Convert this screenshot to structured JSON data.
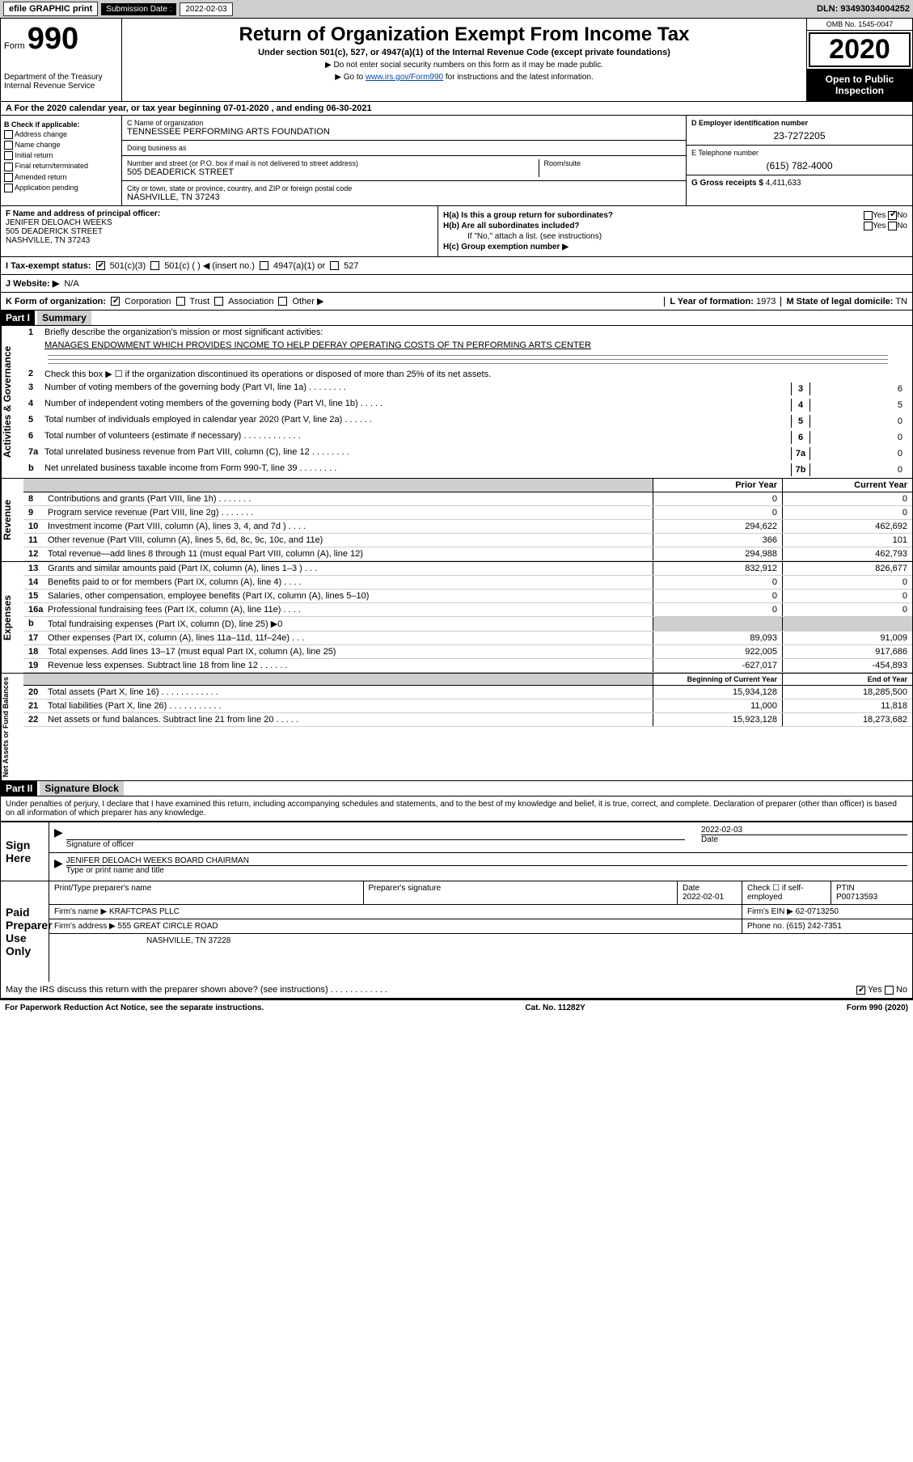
{
  "topbar": {
    "efile": "efile GRAPHIC print",
    "sub_label": "Submission Date :",
    "sub_date": "2022-02-03",
    "dln": "DLN: 93493034004252"
  },
  "header": {
    "form_word": "Form",
    "form_num": "990",
    "dept": "Department of the Treasury\nInternal Revenue Service",
    "title": "Return of Organization Exempt From Income Tax",
    "sub": "Under section 501(c), 527, or 4947(a)(1) of the Internal Revenue Code (except private foundations)",
    "note1": "▶ Do not enter social security numbers on this form as it may be made public.",
    "note2_pre": "▶ Go to ",
    "note2_link": "www.irs.gov/Form990",
    "note2_post": " for instructions and the latest information.",
    "omb": "OMB No. 1545-0047",
    "year": "2020",
    "insp": "Open to Public Inspection"
  },
  "row_a": "A For the 2020 calendar year, or tax year beginning 07-01-2020    , and ending 06-30-2021",
  "sec_b": {
    "title": "B Check if applicable:",
    "items": [
      "Address change",
      "Name change",
      "Initial return",
      "Final return/terminated",
      "Amended return",
      "Application pending"
    ]
  },
  "sec_c": {
    "name_label": "C Name of organization",
    "name": "TENNESSEE PERFORMING ARTS FOUNDATION",
    "dba_label": "Doing business as",
    "dba": "",
    "addr_label": "Number and street (or P.O. box if mail is not delivered to street address)",
    "room_label": "Room/suite",
    "addr": "505 DEADERICK STREET",
    "city_label": "City or town, state or province, country, and ZIP or foreign postal code",
    "city": "NASHVILLE, TN  37243"
  },
  "sec_d": {
    "ein_label": "D Employer identification number",
    "ein": "23-7272205",
    "tel_label": "E Telephone number",
    "tel": "(615) 782-4000",
    "gross_label": "G Gross receipts $",
    "gross": "4,411,633"
  },
  "sec_f": {
    "label": "F Name and address of principal officer:",
    "name": "JENIFER DELOACH WEEKS",
    "addr1": "505 DEADERICK STREET",
    "addr2": "NASHVILLE, TN  37243"
  },
  "sec_h": {
    "ha": "H(a)  Is this a group return for subordinates?",
    "hb": "H(b)  Are all subordinates included?",
    "hb_note": "If \"No,\" attach a list. (see instructions)",
    "hc": "H(c)  Group exemption number ▶",
    "yes": "Yes",
    "no": "No"
  },
  "row_i": {
    "label": "I   Tax-exempt status:",
    "opts": [
      "501(c)(3)",
      "501(c) (  ) ◀ (insert no.)",
      "4947(a)(1) or",
      "527"
    ]
  },
  "row_j": {
    "label": "J   Website: ▶",
    "val": "N/A"
  },
  "row_k": {
    "label": "K Form of organization:",
    "opts": [
      "Corporation",
      "Trust",
      "Association",
      "Other ▶"
    ],
    "l_label": "L Year of formation:",
    "l_val": "1973",
    "m_label": "M State of legal domicile:",
    "m_val": "TN"
  },
  "part1": {
    "hdr": "Part I",
    "title": "Summary"
  },
  "gov": {
    "vert": "Activities & Governance",
    "l1": "Briefly describe the organization's mission or most significant activities:",
    "mission": "MANAGES ENDOWMENT WHICH PROVIDES INCOME TO HELP DEFRAY OPERATING COSTS OF TN PERFORMING ARTS CENTER",
    "l2": "Check this box ▶ ☐  if the organization discontinued its operations or disposed of more than 25% of its net assets.",
    "rows": [
      {
        "n": "3",
        "t": "Number of voting members of the governing body (Part VI, line 1a)   .   .   .   .   .   .   .   .",
        "b": "3",
        "v": "6"
      },
      {
        "n": "4",
        "t": "Number of independent voting members of the governing body (Part VI, line 1b)  .   .   .   .   .",
        "b": "4",
        "v": "5"
      },
      {
        "n": "5",
        "t": "Total number of individuals employed in calendar year 2020 (Part V, line 2a)  .   .   .   .   .   .",
        "b": "5",
        "v": "0"
      },
      {
        "n": "6",
        "t": "Total number of volunteers (estimate if necessary)   .   .   .   .   .   .   .   .   .   .   .   .",
        "b": "6",
        "v": "0"
      },
      {
        "n": "7a",
        "t": "Total unrelated business revenue from Part VIII, column (C), line 12  .   .   .   .   .   .   .   .",
        "b": "7a",
        "v": "0"
      },
      {
        "n": "b",
        "t": "Net unrelated business taxable income from Form 990-T, line 39   .   .   .   .   .   .   .   .",
        "b": "7b",
        "v": "0"
      }
    ]
  },
  "rev": {
    "vert": "Revenue",
    "hdr_prior": "Prior Year",
    "hdr_curr": "Current Year",
    "rows": [
      {
        "n": "8",
        "t": "Contributions and grants (Part VIII, line 1h)   .   .   .   .   .   .   .",
        "p": "0",
        "c": "0"
      },
      {
        "n": "9",
        "t": "Program service revenue (Part VIII, line 2g)   .   .   .   .   .   .   .",
        "p": "0",
        "c": "0"
      },
      {
        "n": "10",
        "t": "Investment income (Part VIII, column (A), lines 3, 4, and 7d )   .   .   .   .",
        "p": "294,622",
        "c": "462,692"
      },
      {
        "n": "11",
        "t": "Other revenue (Part VIII, column (A), lines 5, 6d, 8c, 9c, 10c, and 11e)",
        "p": "366",
        "c": "101"
      },
      {
        "n": "12",
        "t": "Total revenue—add lines 8 through 11 (must equal Part VIII, column (A), line 12)",
        "p": "294,988",
        "c": "462,793"
      }
    ]
  },
  "exp": {
    "vert": "Expenses",
    "rows": [
      {
        "n": "13",
        "t": "Grants and similar amounts paid (Part IX, column (A), lines 1–3 )   .   .   .",
        "p": "832,912",
        "c": "826,677"
      },
      {
        "n": "14",
        "t": "Benefits paid to or for members (Part IX, column (A), line 4)   .   .   .   .",
        "p": "0",
        "c": "0"
      },
      {
        "n": "15",
        "t": "Salaries, other compensation, employee benefits (Part IX, column (A), lines 5–10)",
        "p": "0",
        "c": "0"
      },
      {
        "n": "16a",
        "t": "Professional fundraising fees (Part IX, column (A), line 11e)   .   .   .   .",
        "p": "0",
        "c": "0"
      },
      {
        "n": "b",
        "t": "Total fundraising expenses (Part IX, column (D), line 25) ▶0",
        "p": "",
        "c": "",
        "shade": true
      },
      {
        "n": "17",
        "t": "Other expenses (Part IX, column (A), lines 11a–11d, 11f–24e)   .   .   .",
        "p": "89,093",
        "c": "91,009"
      },
      {
        "n": "18",
        "t": "Total expenses. Add lines 13–17 (must equal Part IX, column (A), line 25)",
        "p": "922,005",
        "c": "917,686"
      },
      {
        "n": "19",
        "t": "Revenue less expenses. Subtract line 18 from line 12  .   .   .   .   .   .",
        "p": "-627,017",
        "c": "-454,893"
      }
    ]
  },
  "net": {
    "vert": "Net Assets or Fund Balances",
    "hdr_beg": "Beginning of Current Year",
    "hdr_end": "End of Year",
    "rows": [
      {
        "n": "20",
        "t": "Total assets (Part X, line 16)  .   .   .   .   .   .   .   .   .   .   .   .",
        "p": "15,934,128",
        "c": "18,285,500"
      },
      {
        "n": "21",
        "t": "Total liabilities (Part X, line 26)  .   .   .   .   .   .   .   .   .   .   .",
        "p": "11,000",
        "c": "11,818"
      },
      {
        "n": "22",
        "t": "Net assets or fund balances. Subtract line 21 from line 20  .   .   .   .   .",
        "p": "15,923,128",
        "c": "18,273,682"
      }
    ]
  },
  "part2": {
    "hdr": "Part II",
    "title": "Signature Block"
  },
  "decl": "Under penalties of perjury, I declare that I have examined this return, including accompanying schedules and statements, and to the best of my knowledge and belief, it is true, correct, and complete. Declaration of preparer (other than officer) is based on all information of which preparer has any knowledge.",
  "sign": {
    "here": "Sign Here",
    "sig_label": "Signature of officer",
    "date_label": "Date",
    "date": "2022-02-03",
    "name": "JENIFER DELOACH WEEKS  BOARD CHAIRMAN",
    "name_label": "Type or print name and title"
  },
  "prep": {
    "here": "Paid Preparer Use Only",
    "h1": "Print/Type preparer's name",
    "h2": "Preparer's signature",
    "h3": "Date",
    "h3v": "2022-02-01",
    "h4": "Check ☐ if self-employed",
    "h5": "PTIN",
    "h5v": "P00713593",
    "firm_label": "Firm's name    ▶",
    "firm": "KRAFTCPAS PLLC",
    "ein_label": "Firm's EIN ▶",
    "ein": "62-0713250",
    "addr_label": "Firm's address ▶",
    "addr1": "555 GREAT CIRCLE ROAD",
    "addr2": "NASHVILLE, TN  37228",
    "phone_label": "Phone no.",
    "phone": "(615) 242-7351"
  },
  "discuss": "May the IRS discuss this return with the preparer shown above? (see instructions)   .   .   .   .   .   .   .   .   .   .   .   .",
  "foot": {
    "l": "For Paperwork Reduction Act Notice, see the separate instructions.",
    "c": "Cat. No. 11282Y",
    "r": "Form 990 (2020)"
  }
}
